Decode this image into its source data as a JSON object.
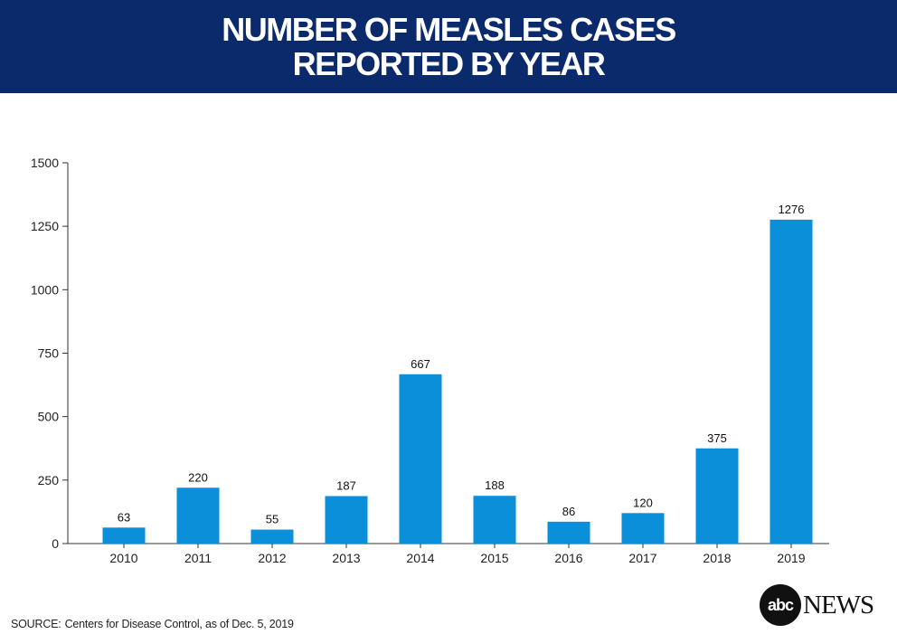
{
  "header": {
    "title_line1": "NUMBER OF MEASLES CASES",
    "title_line2": "REPORTED BY YEAR"
  },
  "chart_data": {
    "type": "bar",
    "categories": [
      "2010",
      "2011",
      "2012",
      "2013",
      "2014",
      "2015",
      "2016",
      "2017",
      "2018",
      "2019"
    ],
    "values": [
      63,
      220,
      55,
      187,
      667,
      188,
      86,
      120,
      375,
      1276
    ],
    "title": "NUMBER OF MEASLES CASES REPORTED BY YEAR",
    "xlabel": "",
    "ylabel": "",
    "ylim": [
      0,
      1500
    ],
    "yticks": [
      0,
      250,
      500,
      750,
      1000,
      1250,
      1500
    ],
    "grid": false,
    "legend": "none",
    "bar_color": "#0a8fd8",
    "data_labels": true
  },
  "footer": {
    "source_label": "SOURCE:",
    "source_text": "Centers for Disease Control, as of Dec. 5, 2019"
  },
  "logo": {
    "abc": "abc",
    "news": "NEWS"
  },
  "colors": {
    "header_bg": "#0b2a6b",
    "bar": "#0a8fd8",
    "axis": "#333333"
  }
}
